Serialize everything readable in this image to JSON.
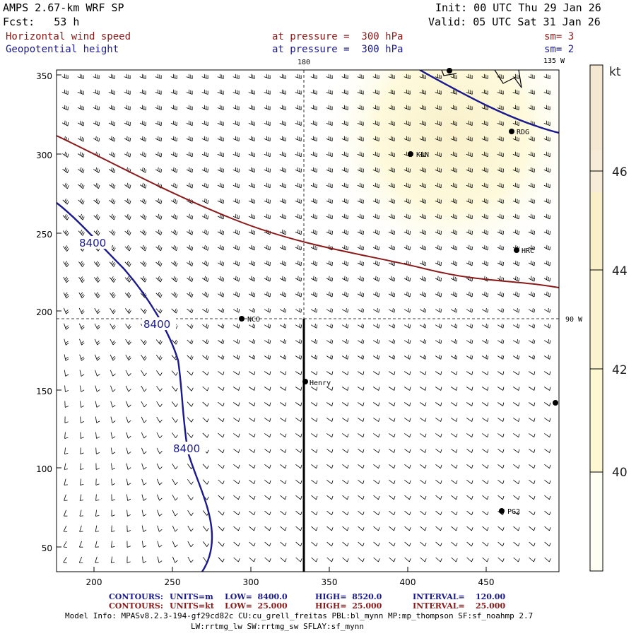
{
  "header": {
    "model": "AMPS 2.67-km WRF SP",
    "fcst": "Fcst:   53 h",
    "init": "Init: 00 UTC Thu 29 Jan 26",
    "valid": "Valid: 05 UTC Sat 31 Jan 26",
    "field1": {
      "name": "Horizontal wind speed",
      "pressure": "at pressure =  300 hPa",
      "sm": "sm= 3"
    },
    "field2": {
      "name": "Geopotential height",
      "pressure": "at pressure =  300 hPa",
      "sm": "sm= 2"
    }
  },
  "map": {
    "lon_labels": {
      "top": "180",
      "top_right": "135 W",
      "right": "90 W"
    },
    "x_ticks": [
      "200",
      "250",
      "300",
      "350",
      "400",
      "450"
    ],
    "y_ticks": [
      "50",
      "100",
      "150",
      "200",
      "250",
      "300",
      "350"
    ],
    "contour_labels": [
      "8400",
      "8400",
      "8400"
    ],
    "stations": [
      "NCO",
      "Henry",
      "KLN",
      "RDG",
      "HRC",
      "PG2"
    ]
  },
  "colorbar": {
    "unit": "kt",
    "labels": [
      "40",
      "42",
      "44",
      "46"
    ],
    "colors": [
      "#fffff2",
      "#fdf8d2",
      "#f9efc8",
      "#f5e8d2"
    ]
  },
  "footer": {
    "line1": {
      "kind": "CONTOURS:",
      "units": "UNITS=m",
      "low": "LOW=  8400.0",
      "high": "HIGH=  8520.0",
      "interval": "INTERVAL=    120.00"
    },
    "line2": {
      "kind": "CONTOURS:",
      "units": "UNITS=kt",
      "low": "LOW=  25.000",
      "high": "HIGH=  25.000",
      "interval": "INTERVAL=    25.000"
    },
    "info1": "Model Info: MPASv8.2.3-194-gf29cd82c CU:cu_grell_freitas PBL:bl_mynn MP:mp_thompson SF:sf_noahmp 2.7",
    "info2": "LW:rrtmg_lw SW:rrtmg_sw SFLAY:sf_mynn"
  },
  "colors": {
    "height_contour": "#1a1a8c",
    "wind_contour": "#8b1a1a"
  }
}
